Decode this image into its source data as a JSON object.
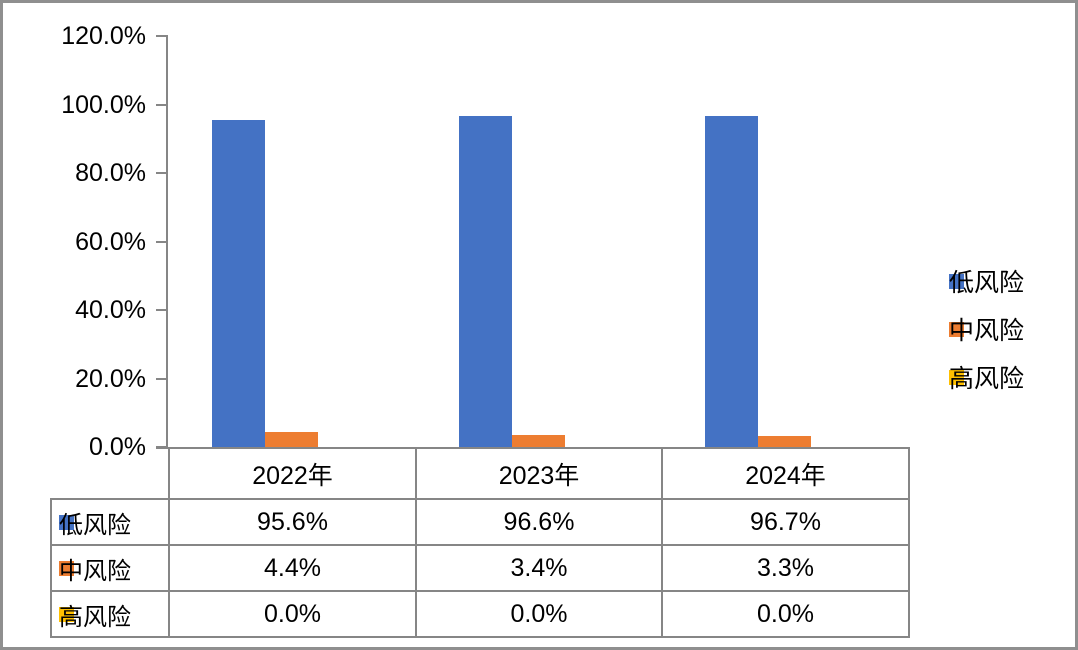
{
  "chart_data": {
    "type": "bar",
    "title": "",
    "categories": [
      "2022年",
      "2023年",
      "2024年"
    ],
    "series": [
      {
        "name": "低风险",
        "key": "low-risk",
        "color": "#4472C4",
        "values": [
          95.6,
          96.6,
          96.7
        ],
        "labels": [
          "95.6%",
          "96.6%",
          "96.7%"
        ]
      },
      {
        "name": "中风险",
        "key": "mid-risk",
        "color": "#ED7D31",
        "values": [
          4.4,
          3.4,
          3.3
        ],
        "labels": [
          "4.4%",
          "3.4%",
          "3.3%"
        ]
      },
      {
        "name": "高风险",
        "key": "high-risk",
        "color": "#FFC000",
        "values": [
          0.0,
          0.0,
          0.0
        ],
        "labels": [
          "0.0%",
          "0.0%",
          "0.0%"
        ]
      }
    ],
    "y_axis": {
      "min": 0,
      "max": 120,
      "tick_step": 20,
      "tick_labels": [
        "120.0%",
        "100.0%",
        "80.0%",
        "60.0%",
        "40.0%",
        "20.0%",
        "0.0%"
      ]
    },
    "legend": {
      "position": "right",
      "entries": [
        "低风险",
        "中风险",
        "高风险"
      ]
    },
    "grid": false,
    "data_table_shown": true
  },
  "colors": {
    "accent_blue": "#4472C4",
    "accent_orange": "#ED7D31",
    "accent_yellow": "#FFC000",
    "axis_gray": "#868686",
    "frame_gray": "#8f8f8f",
    "text": "#000000",
    "background": "#ffffff"
  }
}
